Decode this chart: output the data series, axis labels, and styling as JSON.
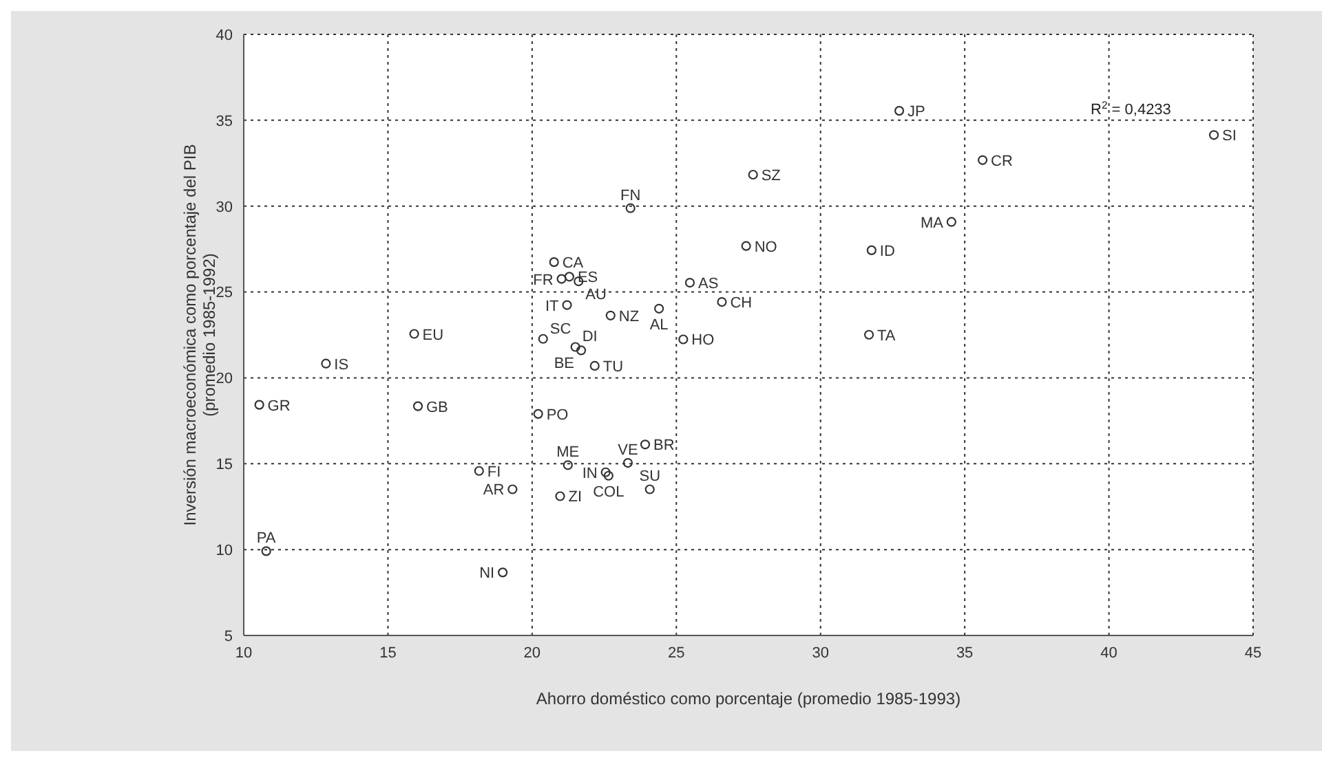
{
  "chart_data": {
    "type": "scatter",
    "xlabel": "Ahorro doméstico como porcentaje (promedio 1985-1993)",
    "ylabel": "Inversión macroeconómica como porcentaje del PIB\n(promedio 1985-1992)",
    "x": [
      27.66,
      23.41,
      27.42,
      20.76,
      21.29,
      21.02,
      21.61,
      25.47,
      21.21,
      22.72,
      24.4,
      26.58,
      15.91,
      20.38,
      21.5,
      21.7,
      25.24,
      12.85,
      22.17,
      10.54,
      16.04,
      20.21,
      21.24,
      18.16,
      22.55,
      22.65,
      23.32,
      23.92,
      24.08,
      19.32,
      20.97,
      10.78,
      18.98,
      32.73,
      43.64,
      35.62,
      34.54,
      31.77,
      31.68
    ],
    "series": [
      {
        "color": "#333333",
        "values": [
          31.83,
          29.88,
          27.68,
          26.74,
          25.89,
          25.76,
          25.62,
          25.54,
          24.24,
          23.63,
          24.03,
          24.42,
          22.56,
          22.27,
          21.8,
          21.6,
          22.24,
          20.83,
          20.7,
          18.43,
          18.35,
          17.9,
          14.92,
          14.58,
          14.5,
          14.3,
          15.05,
          16.12,
          13.51,
          13.51,
          13.11,
          9.91,
          8.67,
          35.55,
          34.14,
          32.68,
          29.08,
          27.43,
          22.51
        ]
      }
    ],
    "xlim": [
      10,
      45
    ],
    "xticks": [
      10,
      15,
      20,
      25,
      30,
      35,
      40,
      45
    ],
    "ylim": [
      5,
      40
    ],
    "yticks": [
      5,
      10,
      15,
      20,
      25,
      30,
      35,
      40
    ],
    "grid": true,
    "marker": "circle",
    "legend": false,
    "annotations": [
      {
        "text": "SZ",
        "x": 27.66,
        "y": 31.83
      },
      {
        "text": "FN",
        "x": 23.41,
        "y": 29.88
      },
      {
        "text": "NO",
        "x": 27.42,
        "y": 27.68
      },
      {
        "text": "CA",
        "x": 20.76,
        "y": 26.74
      },
      {
        "text": "ES",
        "x": 21.29,
        "y": 25.89
      },
      {
        "text": "FR",
        "x": 21.02,
        "y": 25.76
      },
      {
        "text": "AU",
        "x": 21.61,
        "y": 25.62
      },
      {
        "text": "AS",
        "x": 25.47,
        "y": 25.54
      },
      {
        "text": "IT",
        "x": 21.21,
        "y": 24.24
      },
      {
        "text": "NZ",
        "x": 22.72,
        "y": 23.63
      },
      {
        "text": "AL",
        "x": 24.4,
        "y": 24.03
      },
      {
        "text": "CH",
        "x": 26.58,
        "y": 24.42
      },
      {
        "text": "EU",
        "x": 15.91,
        "y": 22.56
      },
      {
        "text": "SC",
        "x": 20.38,
        "y": 22.27
      },
      {
        "text": "DI",
        "x": 21.5,
        "y": 21.8
      },
      {
        "text": "BE",
        "x": 21.7,
        "y": 21.6
      },
      {
        "text": "HO",
        "x": 25.24,
        "y": 22.24
      },
      {
        "text": "IS",
        "x": 12.85,
        "y": 20.83
      },
      {
        "text": "TU",
        "x": 22.17,
        "y": 20.7
      },
      {
        "text": "GR",
        "x": 10.54,
        "y": 18.43
      },
      {
        "text": "GB",
        "x": 16.04,
        "y": 18.35
      },
      {
        "text": "PO",
        "x": 20.21,
        "y": 17.9
      },
      {
        "text": "ME",
        "x": 21.24,
        "y": 14.92
      },
      {
        "text": "FI",
        "x": 18.16,
        "y": 14.58
      },
      {
        "text": "IN",
        "x": 22.55,
        "y": 14.5
      },
      {
        "text": "COL",
        "x": 22.65,
        "y": 14.3
      },
      {
        "text": "VE",
        "x": 23.32,
        "y": 15.05
      },
      {
        "text": "BR",
        "x": 23.92,
        "y": 16.12
      },
      {
        "text": "SU",
        "x": 24.08,
        "y": 13.51
      },
      {
        "text": "AR",
        "x": 19.32,
        "y": 13.51
      },
      {
        "text": "ZI",
        "x": 20.97,
        "y": 13.11
      },
      {
        "text": "PA",
        "x": 10.78,
        "y": 9.91
      },
      {
        "text": "NI",
        "x": 18.98,
        "y": 8.67
      },
      {
        "text": "JP",
        "x": 32.73,
        "y": 35.55
      },
      {
        "text": "SI",
        "x": 43.64,
        "y": 34.14
      },
      {
        "text": "CR",
        "x": 35.62,
        "y": 32.68
      },
      {
        "text": "MA",
        "x": 34.54,
        "y": 29.08
      },
      {
        "text": "ID",
        "x": 31.77,
        "y": 27.43
      },
      {
        "text": "TA",
        "x": 31.68,
        "y": 22.51
      },
      "R$^{2}$ = 0,4233"
    ]
  }
}
